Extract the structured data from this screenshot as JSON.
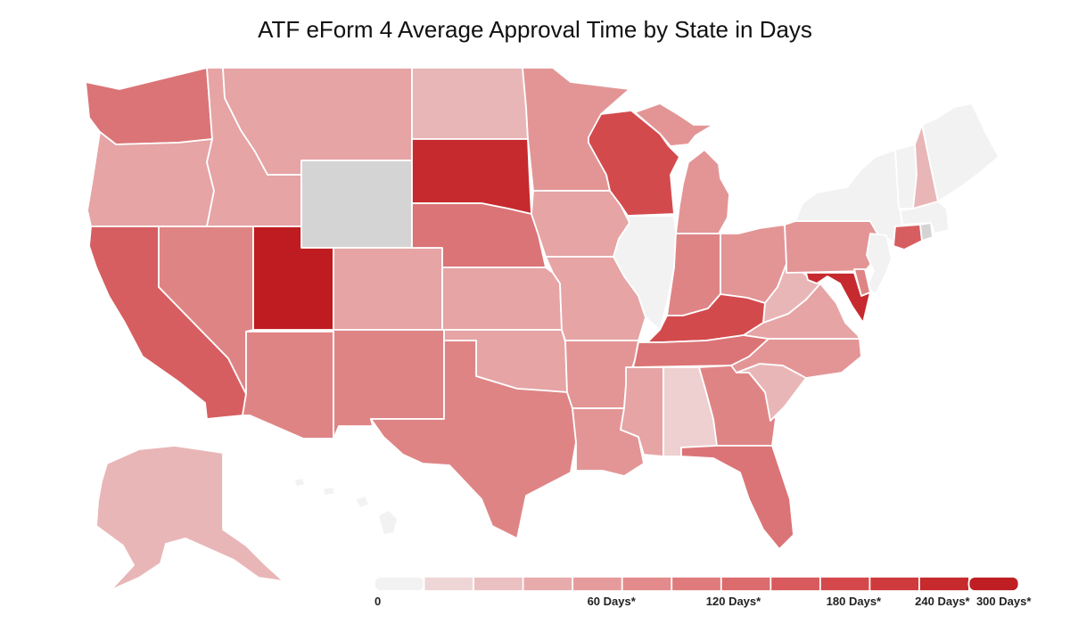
{
  "title": "ATF eForm 4 Average Approval Time by State in Days",
  "legend": {
    "labels": [
      "0",
      "60 Days*",
      "120 Days*",
      "180 Days*",
      "240 Days*",
      "300 Days*"
    ],
    "steps": [
      {
        "color": "#f2f2f2"
      },
      {
        "color": "#eed6d6"
      },
      {
        "color": "#ebc0c1"
      },
      {
        "color": "#e8abac"
      },
      {
        "color": "#e59b9c"
      },
      {
        "color": "#e38b8c"
      },
      {
        "color": "#df7b7c"
      },
      {
        "color": "#dc6b6d"
      },
      {
        "color": "#d85a5c"
      },
      {
        "color": "#d4484b"
      },
      {
        "color": "#cf3a3d"
      },
      {
        "color": "#c62a2d"
      },
      {
        "color": "#bf1e22"
      }
    ]
  },
  "colors": {
    "nodata": "#d4d4d4",
    "zero": "#f2f2f2",
    "c1": "#eed0d0",
    "c2": "#e9b6b7",
    "c3": "#e6a4a5",
    "c4": "#e39596",
    "c5": "#df8485",
    "c6": "#db7476",
    "c7": "#d65e60",
    "c8": "#d34a4d",
    "c9": "#cc3337",
    "c10": "#c62a2e",
    "c11": "#be1c20"
  },
  "states": [
    {
      "code": "WA",
      "name": "Washington",
      "color": "c6"
    },
    {
      "code": "OR",
      "name": "Oregon",
      "color": "c3"
    },
    {
      "code": "CA",
      "name": "California",
      "color": "c7"
    },
    {
      "code": "NV",
      "name": "Nevada",
      "color": "c5"
    },
    {
      "code": "ID",
      "name": "Idaho",
      "color": "c3"
    },
    {
      "code": "MT",
      "name": "Montana",
      "color": "c3"
    },
    {
      "code": "WY",
      "name": "Wyoming",
      "color": "nodata"
    },
    {
      "code": "UT",
      "name": "Utah",
      "color": "c11"
    },
    {
      "code": "AZ",
      "name": "Arizona",
      "color": "c5"
    },
    {
      "code": "CO",
      "name": "Colorado",
      "color": "c3"
    },
    {
      "code": "NM",
      "name": "New Mexico",
      "color": "c5"
    },
    {
      "code": "ND",
      "name": "North Dakota",
      "color": "c2"
    },
    {
      "code": "SD",
      "name": "South Dakota",
      "color": "c10"
    },
    {
      "code": "NE",
      "name": "Nebraska",
      "color": "c6"
    },
    {
      "code": "KS",
      "name": "Kansas",
      "color": "c3"
    },
    {
      "code": "OK",
      "name": "Oklahoma",
      "color": "c3"
    },
    {
      "code": "TX",
      "name": "Texas",
      "color": "c5"
    },
    {
      "code": "MN",
      "name": "Minnesota",
      "color": "c4"
    },
    {
      "code": "IA",
      "name": "Iowa",
      "color": "c3"
    },
    {
      "code": "MO",
      "name": "Missouri",
      "color": "c3"
    },
    {
      "code": "AR",
      "name": "Arkansas",
      "color": "c4"
    },
    {
      "code": "LA",
      "name": "Louisiana",
      "color": "c4"
    },
    {
      "code": "WI",
      "name": "Wisconsin",
      "color": "c8"
    },
    {
      "code": "IL",
      "name": "Illinois",
      "color": "zero"
    },
    {
      "code": "MI",
      "name": "Michigan",
      "color": "c4"
    },
    {
      "code": "IN",
      "name": "Indiana",
      "color": "c5"
    },
    {
      "code": "OH",
      "name": "Ohio",
      "color": "c4"
    },
    {
      "code": "KY",
      "name": "Kentucky",
      "color": "c8"
    },
    {
      "code": "TN",
      "name": "Tennessee",
      "color": "c6"
    },
    {
      "code": "MS",
      "name": "Mississippi",
      "color": "c3"
    },
    {
      "code": "AL",
      "name": "Alabama",
      "color": "c1"
    },
    {
      "code": "GA",
      "name": "Georgia",
      "color": "c5"
    },
    {
      "code": "FL",
      "name": "Florida",
      "color": "c6"
    },
    {
      "code": "SC",
      "name": "South Carolina",
      "color": "c2"
    },
    {
      "code": "NC",
      "name": "North Carolina",
      "color": "c4"
    },
    {
      "code": "VA",
      "name": "Virginia",
      "color": "c3"
    },
    {
      "code": "WV",
      "name": "West Virginia",
      "color": "c2"
    },
    {
      "code": "PA",
      "name": "Pennsylvania",
      "color": "c4"
    },
    {
      "code": "NY",
      "name": "New York",
      "color": "zero"
    },
    {
      "code": "VT",
      "name": "Vermont",
      "color": "zero"
    },
    {
      "code": "NH",
      "name": "New Hampshire",
      "color": "c2"
    },
    {
      "code": "ME",
      "name": "Maine",
      "color": "zero"
    },
    {
      "code": "MA",
      "name": "Massachusetts",
      "color": "zero"
    },
    {
      "code": "CT",
      "name": "Connecticut",
      "color": "c7"
    },
    {
      "code": "RI",
      "name": "Rhode Island",
      "color": "nodata"
    },
    {
      "code": "NJ",
      "name": "New Jersey",
      "color": "zero"
    },
    {
      "code": "DE",
      "name": "Delaware",
      "color": "c5"
    },
    {
      "code": "MD",
      "name": "Maryland",
      "color": "c10"
    },
    {
      "code": "AK",
      "name": "Alaska",
      "color": "c2"
    },
    {
      "code": "HI",
      "name": "Hawaii",
      "color": "zero"
    }
  ]
}
